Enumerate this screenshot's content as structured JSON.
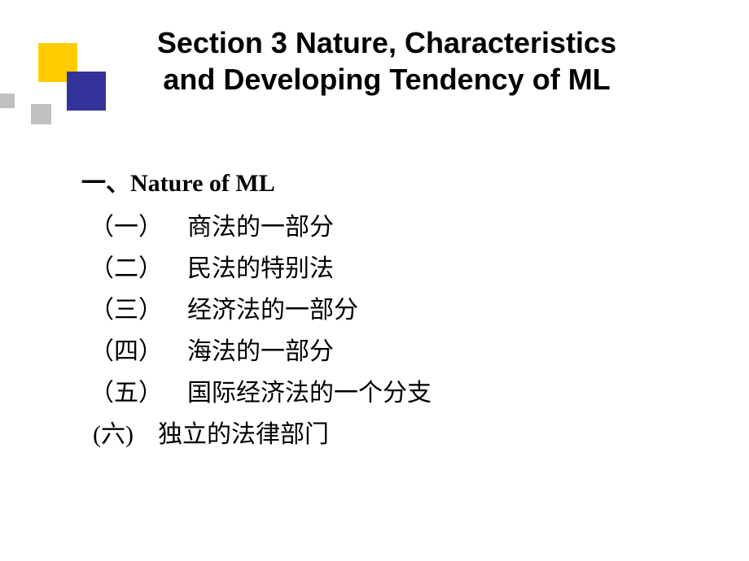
{
  "decoration": {
    "yellow_color": "#ffcc00",
    "blue_color": "#333399",
    "gray_color": "#c0c0c0"
  },
  "title": {
    "line1": "Section 3  Nature, Characteristics",
    "line2": "and Developing Tendency of ML",
    "fontsize": 36,
    "font_weight": "bold",
    "color": "#000000"
  },
  "content": {
    "heading": "一、Nature of ML",
    "items": [
      {
        "marker": "（一）",
        "text": "商法的一部分"
      },
      {
        "marker": "（二）",
        "text": "民法的特别法"
      },
      {
        "marker": "（三）",
        "text": "经济法的一部分"
      },
      {
        "marker": "（四）",
        "text": "海法的一部分"
      },
      {
        "marker": "（五）",
        "text": "国际经济法的一个分支"
      },
      {
        "marker": "(六)",
        "text": "独立的法律部门"
      }
    ],
    "fontsize": 30,
    "color": "#000000"
  },
  "background_color": "#ffffff"
}
